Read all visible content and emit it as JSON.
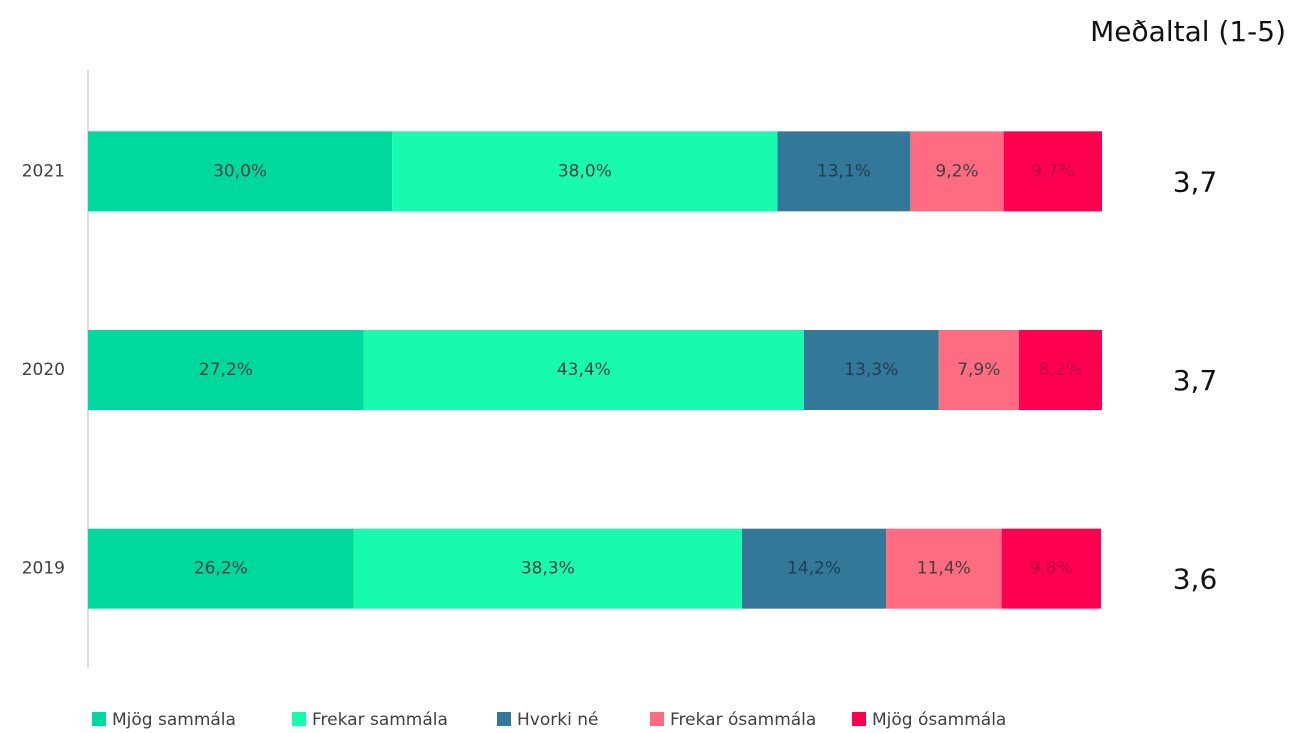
{
  "chart_data": {
    "type": "stacked_barh",
    "categories": [
      "2021",
      "2020",
      "2019"
    ],
    "xlim": [
      0,
      100
    ],
    "series": [
      {
        "name": "Mjög sammála",
        "color": "#00D99E",
        "label_color": "#404040",
        "values": [
          30.0,
          27.2,
          26.2
        ],
        "value_labels": [
          "30,0%",
          "27,2%",
          "26,2%"
        ]
      },
      {
        "name": "Frekar sammála",
        "color": "#18FBAE",
        "label_color": "#404040",
        "values": [
          38.0,
          43.4,
          38.3
        ],
        "value_labels": [
          "38,0%",
          "43,4%",
          "38,3%"
        ]
      },
      {
        "name": "Hvorki né",
        "color": "#337799",
        "label_color": "#1E3F55",
        "values": [
          13.1,
          13.3,
          14.2
        ],
        "value_labels": [
          "13,1%",
          "13,3%",
          "14,2%"
        ]
      },
      {
        "name": "Frekar ósammála",
        "color": "#FF6B80",
        "label_color": "#404040",
        "values": [
          9.2,
          7.9,
          11.4
        ],
        "value_labels": [
          "9,2%",
          "7,9%",
          "11,4%"
        ]
      },
      {
        "name": "Mjög ósammála",
        "color": "#FF0050",
        "label_color": "#B80040",
        "values": [
          9.7,
          8.2,
          9.8
        ],
        "value_labels": [
          "9,7%",
          "8,2%",
          "9,8%"
        ]
      }
    ],
    "mean_title": "Meðaltal (1-5)",
    "means": [
      3.7,
      3.7,
      3.6
    ],
    "mean_labels": [
      "3,7",
      "3,7",
      "3,6"
    ]
  }
}
